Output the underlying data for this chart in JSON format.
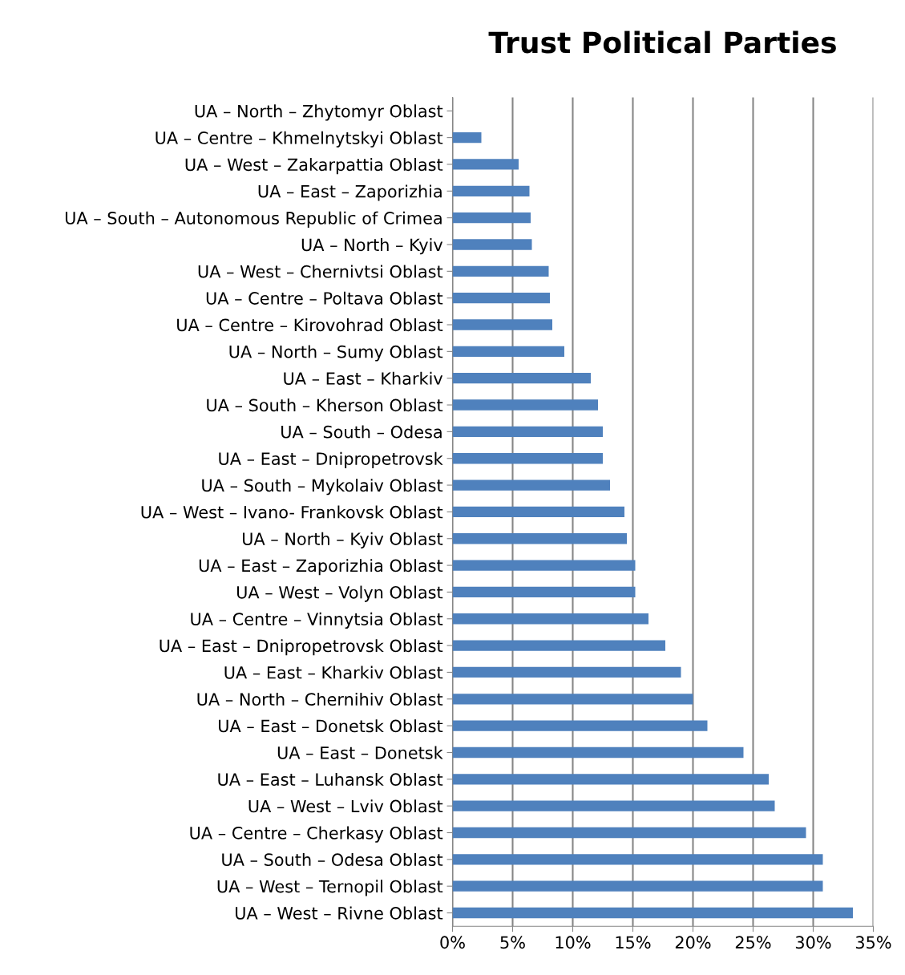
{
  "chart_data": {
    "type": "bar",
    "orientation": "horizontal",
    "title": "Trust Political Parties",
    "categories": [
      "UA – North – Zhytomyr Oblast",
      "UA – Centre – Khmelnytskyi Oblast",
      "UA – West – Zakarpattia Oblast",
      "UA – East – Zaporizhia",
      "UA – South – Autonomous Republic of Crimea",
      "UA – North – Kyiv",
      "UA – West – Chernivtsi Oblast",
      "UA – Centre – Poltava Oblast",
      "UA – Centre – Kirovohrad Oblast",
      "UA – North – Sumy Oblast",
      "UA – East – Kharkiv",
      "UA – South – Kherson Oblast",
      "UA – South – Odesa",
      "UA – East – Dnipropetrovsk",
      "UA – South – Mykolaiv Oblast",
      "UA – West – Ivano- Frankovsk Oblast",
      "UA – North – Kyiv Oblast",
      "UA – East – Zaporizhia Oblast",
      "UA – West – Volyn Oblast",
      "UA – Centre – Vinnytsia Oblast",
      "UA – East – Dnipropetrovsk Oblast",
      "UA – East – Kharkiv Oblast",
      "UA – North – Chernihiv Oblast",
      "UA – East – Donetsk Oblast",
      "UA – East – Donetsk",
      "UA – East – Luhansk Oblast",
      "UA – West – Lviv Oblast",
      "UA – Centre – Cherkasy Oblast",
      "UA – South – Odesa Oblast",
      "UA – West – Ternopil Oblast",
      "UA – West – Rivne Oblast"
    ],
    "values": [
      0,
      2.4,
      5.5,
      6.4,
      6.5,
      6.6,
      8.0,
      8.1,
      8.3,
      9.3,
      11.5,
      12.1,
      12.5,
      12.5,
      13.1,
      14.3,
      14.5,
      15.2,
      15.2,
      16.3,
      17.7,
      19.0,
      20.0,
      21.2,
      24.2,
      26.3,
      26.8,
      29.4,
      30.8,
      30.8,
      33.3
    ],
    "color": "#4f81bd",
    "xlim": [
      0,
      35
    ],
    "xticks": [
      {
        "value": 0,
        "label": "0%"
      },
      {
        "value": 5,
        "label": "5%"
      },
      {
        "value": 10,
        "label": "10%"
      },
      {
        "value": 15,
        "label": "15%"
      },
      {
        "value": 20,
        "label": "20%"
      },
      {
        "value": 25,
        "label": "25%"
      },
      {
        "value": 30,
        "label": "30%"
      },
      {
        "value": 35,
        "label": "35%"
      }
    ],
    "grid": "x",
    "legend": false
  }
}
